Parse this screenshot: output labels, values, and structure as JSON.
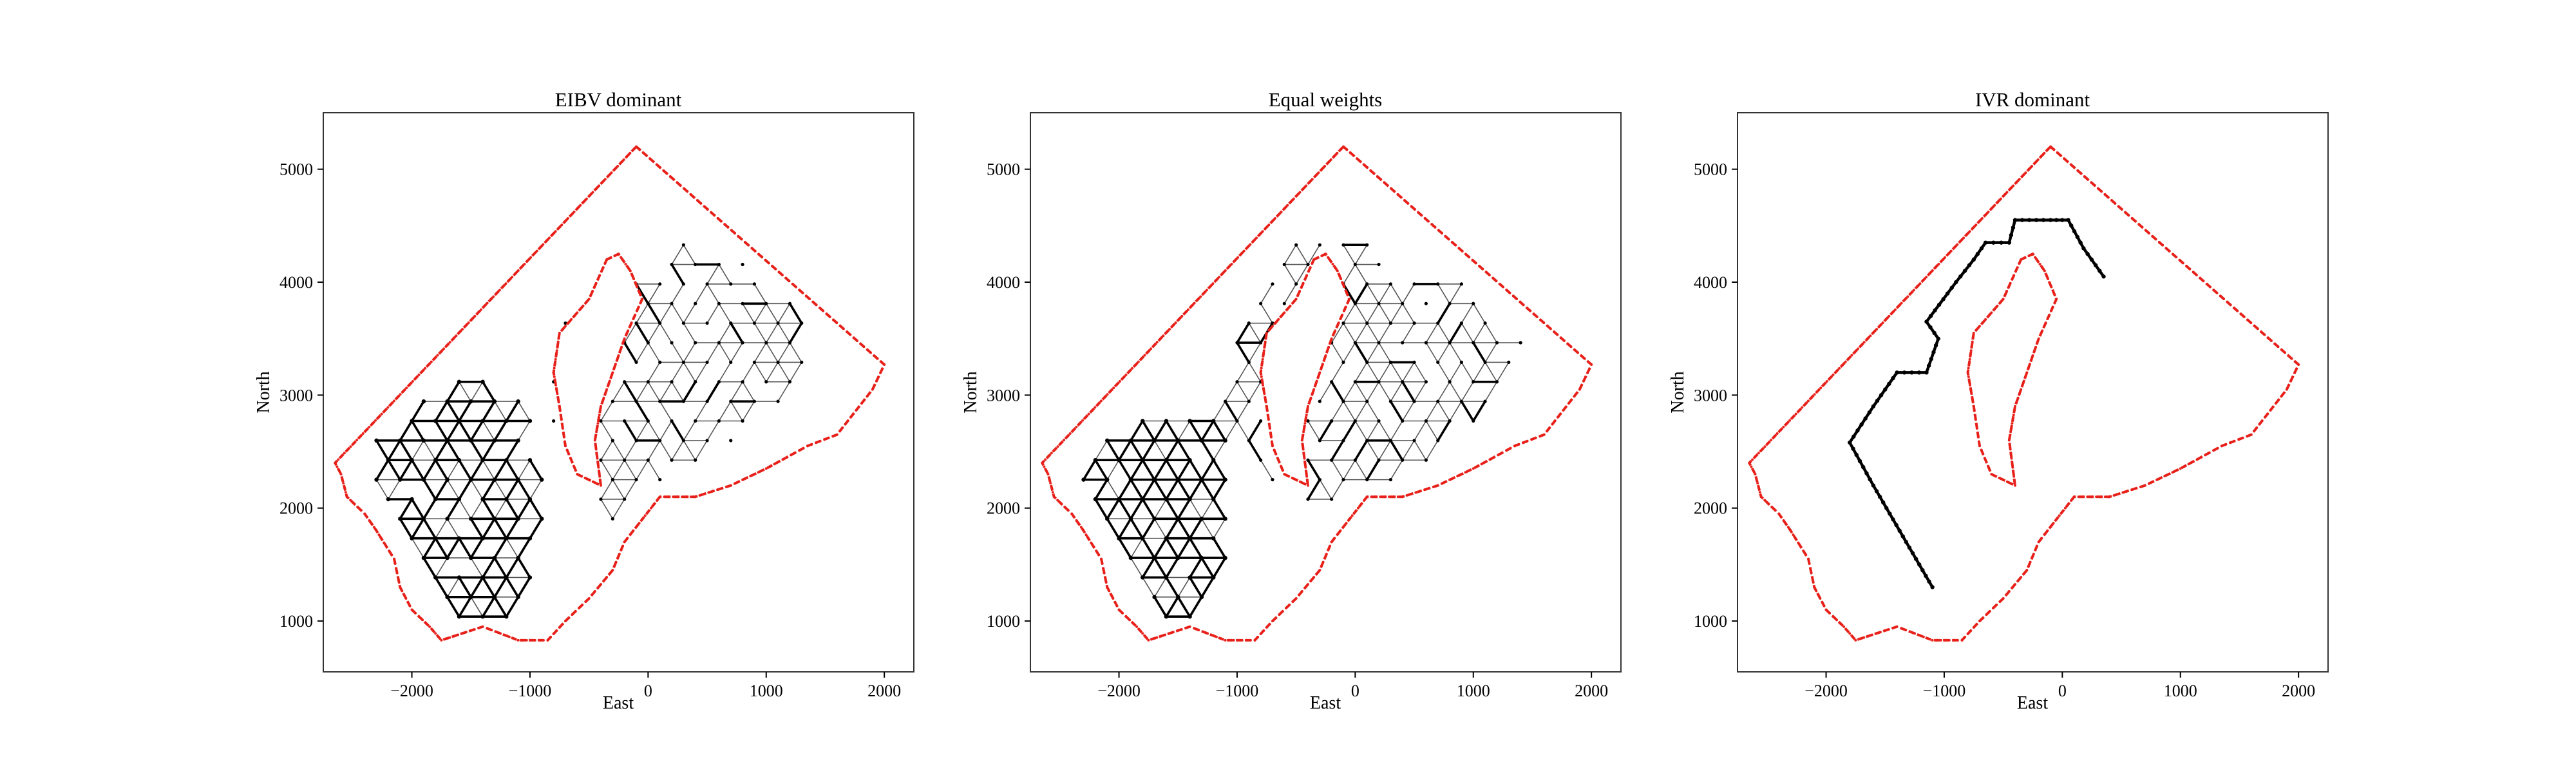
{
  "colors": {
    "boundary": "#e8201a",
    "path": "#000000",
    "background": "#ffffff"
  },
  "chart_data": [
    {
      "type": "line",
      "title": "EIBV dominant",
      "xlabel": "East",
      "ylabel": "North",
      "xlim": [
        -2750,
        2250
      ],
      "ylim": [
        550,
        5500
      ],
      "xticks": [
        -2000,
        -1000,
        0,
        1000,
        2000
      ],
      "yticks": [
        1000,
        2000,
        3000,
        4000,
        5000
      ],
      "xtick_labels": [
        "−2000",
        "−1000",
        "0",
        "1000",
        "2000"
      ],
      "ytick_labels": [
        "1000",
        "2000",
        "3000",
        "4000",
        "5000"
      ],
      "grid": false,
      "series": [
        {
          "role": "operational-area-boundary",
          "color": "#e8201a",
          "outer": [
            [
              -100,
              5200
            ],
            [
              2000,
              3270
            ],
            [
              1900,
              3050
            ],
            [
              1600,
              2650
            ],
            [
              1350,
              2550
            ],
            [
              1000,
              2350
            ],
            [
              700,
              2200
            ],
            [
              400,
              2100
            ],
            [
              100,
              2100
            ],
            [
              -50,
              1900
            ],
            [
              -200,
              1700
            ],
            [
              -300,
              1450
            ],
            [
              -500,
              1200
            ],
            [
              -700,
              1000
            ],
            [
              -850,
              830
            ],
            [
              -1100,
              830
            ],
            [
              -1400,
              950
            ],
            [
              -1750,
              830
            ],
            [
              -1850,
              950
            ],
            [
              -2000,
              1100
            ],
            [
              -2100,
              1300
            ],
            [
              -2150,
              1550
            ],
            [
              -2300,
              1800
            ],
            [
              -2400,
              1950
            ],
            [
              -2550,
              2100
            ],
            [
              -2600,
              2300
            ],
            [
              -2650,
              2400
            ],
            [
              -100,
              5200
            ]
          ],
          "inner": [
            [
              -350,
              4200
            ],
            [
              -250,
              4250
            ],
            [
              -150,
              4100
            ],
            [
              -50,
              3850
            ],
            [
              -200,
              3500
            ],
            [
              -300,
              3200
            ],
            [
              -400,
              2900
            ],
            [
              -450,
              2600
            ],
            [
              -400,
              2200
            ],
            [
              -600,
              2300
            ],
            [
              -700,
              2550
            ],
            [
              -750,
              2900
            ],
            [
              -800,
              3200
            ],
            [
              -750,
              3550
            ],
            [
              -500,
              3850
            ],
            [
              -350,
              4200
            ]
          ]
        },
        {
          "role": "survey-path",
          "color": "#000000",
          "style": "dense-triangular-lattice",
          "core_polygon": [
            [
              -2300,
              2600
            ],
            [
              -1700,
              3150
            ],
            [
              -1100,
              3100
            ],
            [
              -850,
              2400
            ],
            [
              -900,
              1600
            ],
            [
              -1150,
              900
            ],
            [
              -1750,
              950
            ],
            [
              -2050,
              1700
            ],
            [
              -2400,
              2300
            ]
          ],
          "sparse_polygon": [
            [
              -700,
              3700
            ],
            [
              -300,
              3600
            ],
            [
              -100,
              4050
            ],
            [
              300,
              4350
            ],
            [
              800,
              4200
            ],
            [
              1450,
              3700
            ],
            [
              1300,
              3100
            ],
            [
              700,
              2550
            ],
            [
              0,
              2100
            ],
            [
              -450,
              1800
            ],
            [
              -600,
              2300
            ],
            [
              -900,
              3000
            ]
          ]
        }
      ]
    },
    {
      "type": "line",
      "title": "Equal weights",
      "xlabel": "East",
      "ylabel": "North",
      "xlim": [
        -2750,
        2250
      ],
      "ylim": [
        550,
        5500
      ],
      "xticks": [
        -2000,
        -1000,
        0,
        1000,
        2000
      ],
      "yticks": [
        1000,
        2000,
        3000,
        4000,
        5000
      ],
      "xtick_labels": [
        "−2000",
        "−1000",
        "0",
        "1000",
        "2000"
      ],
      "ytick_labels": [
        "1000",
        "2000",
        "3000",
        "4000",
        "5000"
      ],
      "grid": false,
      "series": [
        {
          "role": "operational-area-boundary",
          "color": "#e8201a",
          "outer": [
            [
              -100,
              5200
            ],
            [
              2000,
              3270
            ],
            [
              1900,
              3050
            ],
            [
              1600,
              2650
            ],
            [
              1350,
              2550
            ],
            [
              1000,
              2350
            ],
            [
              700,
              2200
            ],
            [
              400,
              2100
            ],
            [
              100,
              2100
            ],
            [
              -50,
              1900
            ],
            [
              -200,
              1700
            ],
            [
              -300,
              1450
            ],
            [
              -500,
              1200
            ],
            [
              -700,
              1000
            ],
            [
              -850,
              830
            ],
            [
              -1100,
              830
            ],
            [
              -1400,
              950
            ],
            [
              -1750,
              830
            ],
            [
              -1850,
              950
            ],
            [
              -2000,
              1100
            ],
            [
              -2100,
              1300
            ],
            [
              -2150,
              1550
            ],
            [
              -2300,
              1800
            ],
            [
              -2400,
              1950
            ],
            [
              -2550,
              2100
            ],
            [
              -2600,
              2300
            ],
            [
              -2650,
              2400
            ],
            [
              -100,
              5200
            ]
          ],
          "inner": [
            [
              -350,
              4200
            ],
            [
              -250,
              4250
            ],
            [
              -150,
              4100
            ],
            [
              -50,
              3850
            ],
            [
              -200,
              3500
            ],
            [
              -300,
              3200
            ],
            [
              -400,
              2900
            ],
            [
              -450,
              2600
            ],
            [
              -400,
              2200
            ],
            [
              -600,
              2300
            ],
            [
              -700,
              2550
            ],
            [
              -750,
              2900
            ],
            [
              -800,
              3200
            ],
            [
              -750,
              3550
            ],
            [
              -500,
              3850
            ],
            [
              -350,
              4200
            ]
          ]
        },
        {
          "role": "survey-path",
          "color": "#000000",
          "style": "dense-triangular-lattice",
          "core_polygon": [
            [
              -2400,
              2400
            ],
            [
              -1650,
              2900
            ],
            [
              -1200,
              2950
            ],
            [
              -1000,
              2300
            ],
            [
              -1050,
              1500
            ],
            [
              -1250,
              1000
            ],
            [
              -1800,
              1050
            ],
            [
              -2150,
              1700
            ]
          ],
          "sparse_polygon": [
            [
              -1250,
              3000
            ],
            [
              -750,
              3950
            ],
            [
              -450,
              4450
            ],
            [
              0,
              4450
            ],
            [
              500,
              4050
            ],
            [
              950,
              4000
            ],
            [
              1500,
              3400
            ],
            [
              1200,
              2850
            ],
            [
              700,
              2450
            ],
            [
              100,
              2150
            ],
            [
              -500,
              2000
            ],
            [
              -900,
              2400
            ]
          ]
        }
      ]
    },
    {
      "type": "line",
      "title": "IVR dominant",
      "xlabel": "East",
      "ylabel": "North",
      "xlim": [
        -2750,
        2250
      ],
      "ylim": [
        550,
        5500
      ],
      "xticks": [
        -2000,
        -1000,
        0,
        1000,
        2000
      ],
      "yticks": [
        1000,
        2000,
        3000,
        4000,
        5000
      ],
      "xtick_labels": [
        "−2000",
        "−1000",
        "0",
        "1000",
        "2000"
      ],
      "ytick_labels": [
        "1000",
        "2000",
        "3000",
        "4000",
        "5000"
      ],
      "grid": false,
      "series": [
        {
          "role": "operational-area-boundary",
          "color": "#e8201a",
          "outer": [
            [
              -100,
              5200
            ],
            [
              2000,
              3270
            ],
            [
              1900,
              3050
            ],
            [
              1600,
              2650
            ],
            [
              1350,
              2550
            ],
            [
              1000,
              2350
            ],
            [
              700,
              2200
            ],
            [
              400,
              2100
            ],
            [
              100,
              2100
            ],
            [
              -50,
              1900
            ],
            [
              -200,
              1700
            ],
            [
              -300,
              1450
            ],
            [
              -500,
              1200
            ],
            [
              -700,
              1000
            ],
            [
              -850,
              830
            ],
            [
              -1100,
              830
            ],
            [
              -1400,
              950
            ],
            [
              -1750,
              830
            ],
            [
              -1850,
              950
            ],
            [
              -2000,
              1100
            ],
            [
              -2100,
              1300
            ],
            [
              -2150,
              1550
            ],
            [
              -2300,
              1800
            ],
            [
              -2400,
              1950
            ],
            [
              -2550,
              2100
            ],
            [
              -2600,
              2300
            ],
            [
              -2650,
              2400
            ],
            [
              -100,
              5200
            ]
          ],
          "inner": [
            [
              -350,
              4200
            ],
            [
              -250,
              4250
            ],
            [
              -150,
              4100
            ],
            [
              -50,
              3850
            ],
            [
              -200,
              3500
            ],
            [
              -300,
              3200
            ],
            [
              -400,
              2900
            ],
            [
              -450,
              2600
            ],
            [
              -400,
              2200
            ],
            [
              -600,
              2300
            ],
            [
              -700,
              2550
            ],
            [
              -750,
              2900
            ],
            [
              -800,
              3200
            ],
            [
              -750,
              3550
            ],
            [
              -500,
              3850
            ],
            [
              -350,
              4200
            ]
          ]
        },
        {
          "role": "survey-path",
          "color": "#000000",
          "style": "polyline",
          "points": [
            [
              -1100,
              1300
            ],
            [
              -1350,
              1750
            ],
            [
              -1600,
              2200
            ],
            [
              -1800,
              2580
            ],
            [
              -1600,
              2900
            ],
            [
              -1400,
              3200
            ],
            [
              -1150,
              3200
            ],
            [
              -1050,
              3500
            ],
            [
              -1150,
              3650
            ],
            [
              -900,
              4000
            ],
            [
              -750,
              4200
            ],
            [
              -650,
              4350
            ],
            [
              -450,
              4350
            ],
            [
              -400,
              4550
            ],
            [
              -100,
              4550
            ],
            [
              50,
              4550
            ],
            [
              180,
              4300
            ],
            [
              350,
              4050
            ]
          ]
        }
      ]
    }
  ]
}
